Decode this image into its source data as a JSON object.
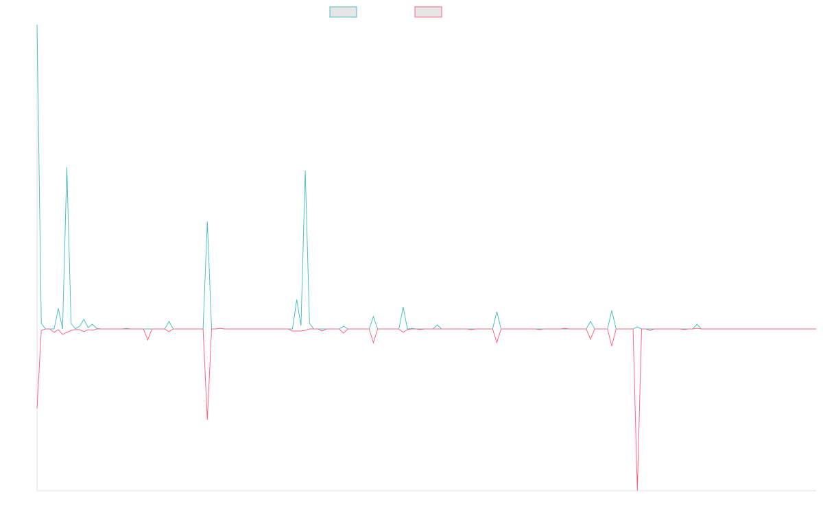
{
  "chart_data": {
    "type": "line",
    "x": [
      0,
      1,
      2,
      3,
      4,
      5,
      6,
      7,
      8,
      9,
      10,
      11,
      12,
      13,
      14,
      15,
      16,
      17,
      18,
      19,
      20,
      21,
      22,
      23,
      24,
      25,
      26,
      27,
      28,
      29,
      30,
      31,
      32,
      33,
      34,
      35,
      36,
      37,
      38,
      39,
      40,
      41,
      42,
      43,
      44,
      45,
      46,
      47,
      48,
      49,
      50,
      51,
      52,
      53,
      54,
      55,
      56,
      57,
      58,
      59,
      60,
      61,
      62,
      63,
      64,
      65,
      66,
      67,
      68,
      69,
      70,
      71,
      72,
      73,
      74,
      75,
      76,
      77,
      78,
      79,
      80,
      81,
      82,
      83,
      84,
      85,
      86,
      87,
      88,
      89,
      90,
      91,
      92,
      93,
      94,
      95,
      96,
      97,
      98,
      99,
      100,
      101,
      102,
      103,
      104,
      105,
      106,
      107,
      108,
      109,
      110,
      111,
      112,
      113,
      114,
      115,
      116,
      117,
      118,
      119,
      120,
      121,
      122,
      123,
      124,
      125,
      126,
      127,
      128,
      129,
      130,
      131,
      132,
      133,
      134,
      135,
      136,
      137,
      138,
      139,
      140,
      141,
      142,
      143,
      144,
      145,
      146,
      147,
      148,
      149,
      150,
      151,
      152,
      153,
      154,
      155,
      156,
      157,
      158,
      159,
      160,
      161,
      162,
      163,
      164,
      165,
      166,
      167,
      168,
      169,
      170,
      171,
      172,
      173,
      174,
      175,
      176,
      177,
      178,
      179,
      180,
      181,
      182,
      183
    ],
    "xlim": [
      0,
      183
    ],
    "ylim": [
      -236,
      444
    ],
    "series": [
      {
        "color": "#4bc0c0",
        "values": [
          444,
          8,
          0,
          0,
          0,
          30,
          0,
          236,
          8,
          0,
          4,
          14,
          2,
          7,
          1,
          0,
          0,
          0,
          0,
          0,
          0,
          1,
          0,
          0,
          0,
          0,
          0,
          0,
          0,
          0,
          0,
          11,
          0,
          0,
          0,
          0,
          0,
          0,
          0,
          0,
          157,
          0,
          0,
          1,
          0,
          0,
          0,
          0,
          0,
          0,
          0,
          0,
          0,
          0,
          0,
          0,
          0,
          0,
          0,
          0,
          0,
          43,
          5,
          231,
          8,
          0,
          0,
          0,
          0,
          0,
          0,
          0,
          4,
          0,
          0,
          0,
          0,
          0,
          0,
          18,
          0,
          0,
          0,
          0,
          0,
          0,
          32,
          0,
          1,
          0,
          0,
          0,
          0,
          0,
          6,
          0,
          0,
          0,
          0,
          0,
          0,
          0,
          0,
          0,
          0,
          0,
          0,
          0,
          25,
          0,
          0,
          0,
          0,
          0,
          0,
          0,
          0,
          0,
          0,
          0,
          0,
          0,
          0,
          0,
          0,
          0,
          0,
          0,
          0,
          0,
          11,
          0,
          0,
          0,
          0,
          27,
          0,
          0,
          0,
          0,
          0,
          3,
          0,
          0,
          0,
          0,
          0,
          0,
          0,
          0,
          0,
          0,
          0,
          0,
          0,
          7,
          0,
          0,
          0,
          0,
          0,
          0,
          0,
          0,
          0,
          0,
          0,
          0,
          0,
          0,
          0,
          0,
          0,
          0,
          0,
          0,
          0,
          0,
          0,
          0,
          0,
          0,
          0,
          0
        ]
      },
      {
        "color": "#ff6384",
        "values": [
          -116,
          -2,
          0,
          0,
          -5,
          -1,
          -8,
          -5,
          -2,
          -1,
          -1,
          -4,
          -1,
          -2,
          0,
          0,
          0,
          0,
          0,
          0,
          0,
          0,
          0,
          0,
          0,
          0,
          -16,
          0,
          0,
          0,
          0,
          -4,
          0,
          0,
          0,
          0,
          0,
          0,
          0,
          0,
          -133,
          0,
          0,
          1,
          0,
          0,
          0,
          0,
          0,
          0,
          0,
          0,
          0,
          0,
          0,
          0,
          0,
          0,
          0,
          0,
          -3,
          -3,
          -3,
          -2,
          0,
          0,
          0,
          -3,
          0,
          0,
          0,
          0,
          -6,
          0,
          0,
          0,
          0,
          0,
          0,
          -20,
          0,
          0,
          0,
          0,
          0,
          0,
          -5,
          -1,
          0,
          0,
          -1,
          0,
          0,
          0,
          0,
          0,
          0,
          0,
          0,
          0,
          0,
          0,
          -1,
          0,
          0,
          0,
          0,
          0,
          -20,
          0,
          0,
          0,
          0,
          0,
          0,
          0,
          0,
          0,
          -1,
          0,
          0,
          0,
          0,
          0,
          1,
          0,
          0,
          0,
          0,
          0,
          -15,
          0,
          0,
          0,
          0,
          -25,
          0,
          0,
          0,
          0,
          0,
          -236,
          0,
          0,
          -2,
          0,
          0,
          0,
          0,
          0,
          0,
          0,
          -1,
          0,
          0,
          1,
          0,
          0,
          0,
          0,
          0,
          0,
          0,
          0,
          0,
          0,
          0,
          0,
          0,
          0,
          0,
          0,
          0,
          0,
          0,
          0,
          0,
          0,
          0,
          0,
          0,
          0,
          0,
          0
        ]
      }
    ]
  }
}
